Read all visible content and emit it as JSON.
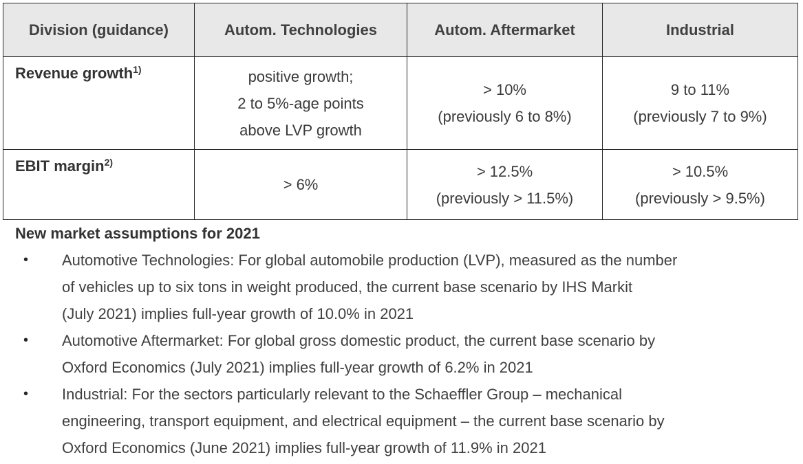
{
  "table": {
    "headers": [
      "Division (guidance)",
      "Autom. Technologies",
      "Autom. Aftermarket",
      "Industrial"
    ],
    "rows": [
      {
        "label": "Revenue growth",
        "footnote": "1)",
        "cells": [
          [
            "positive growth;",
            "2 to 5%-age points",
            "above LVP growth"
          ],
          [
            "> 10%",
            "(previously 6 to 8%)"
          ],
          [
            "9 to 11%",
            "(previously 7 to 9%)"
          ]
        ]
      },
      {
        "label": "EBIT margin",
        "footnote": "2)",
        "cells": [
          [
            "> 6%"
          ],
          [
            "> 12.5%",
            "(previously > 11.5%)"
          ],
          [
            "> 10.5%",
            "(previously > 9.5%)"
          ]
        ]
      }
    ]
  },
  "assumptions": {
    "title": "New market assumptions for 2021",
    "bullet_symbol": "•",
    "items": [
      [
        "Automotive Technologies: For global automobile production (LVP), measured as the number",
        "of vehicles up to six tons in weight produced, the current base scenario by IHS Markit",
        "(July 2021) implies full-year growth of 10.0% in 2021"
      ],
      [
        "Automotive Aftermarket: For global gross domestic product, the current base scenario by",
        "Oxford Economics (July 2021) implies full-year growth of 6.2% in 2021"
      ],
      [
        "Industrial: For the sectors particularly relevant to the Schaeffler Group – mechanical",
        "engineering, transport equipment, and electrical equipment – the current base scenario by",
        "Oxford Economics (June 2021) implies full-year growth of 11.9% in 2021"
      ]
    ]
  }
}
